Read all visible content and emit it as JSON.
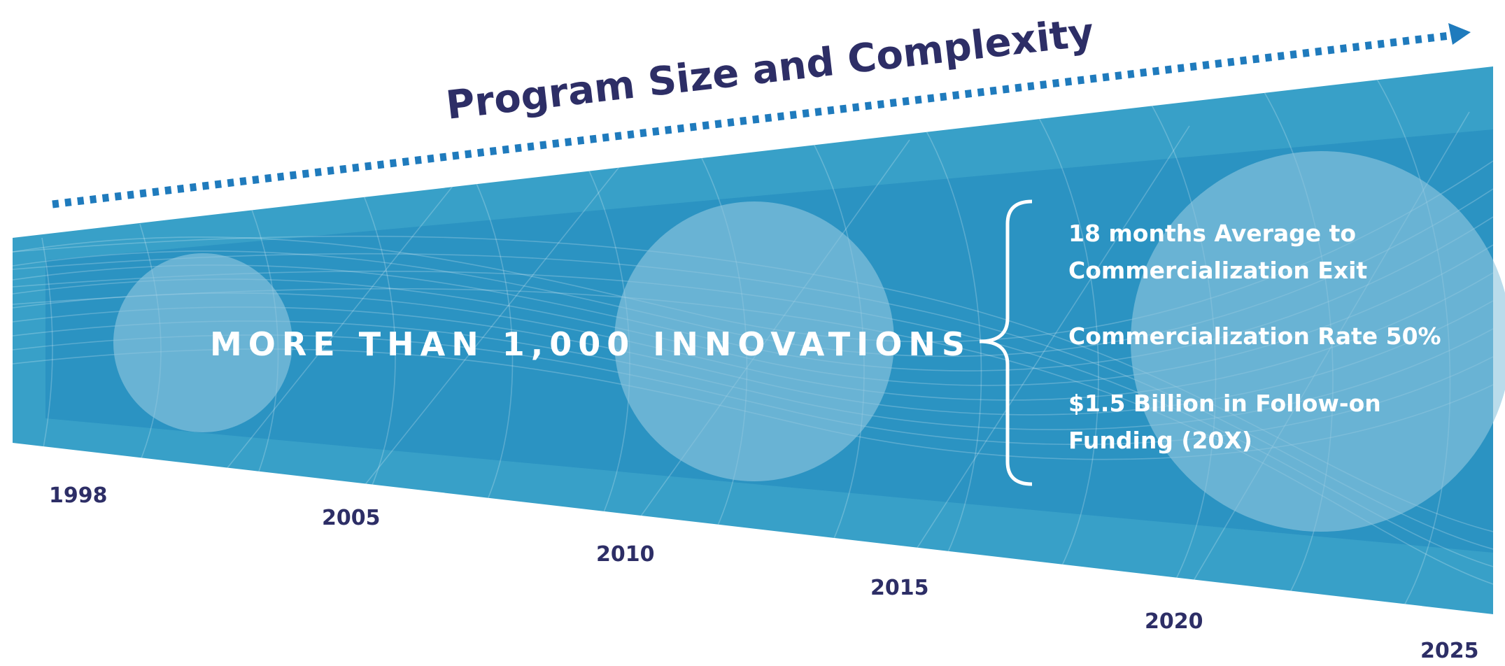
{
  "title": "Program Size and Complexity",
  "headline": "MORE THAN 1,000 INNOVATIONS",
  "stats": [
    {
      "lines": [
        "18 months Average to",
        "Commercialization Exit"
      ]
    },
    {
      "lines": [
        "Commercialization Rate  50%"
      ]
    },
    {
      "lines": [
        "$1.5 Billion in Follow-on",
        "Funding (20X)"
      ]
    }
  ],
  "years": [
    "1998",
    "2005",
    "2010",
    "2015",
    "2020",
    "2025"
  ],
  "colors": {
    "navy": "#2d2e66",
    "band": "#38a0c8",
    "band_inner": "#2b93c2",
    "arrow": "#1f7bbd",
    "circle": "#8fc6df"
  },
  "icons": {
    "arrow": "dotted-arrow-icon",
    "brace": "curly-brace-icon"
  }
}
